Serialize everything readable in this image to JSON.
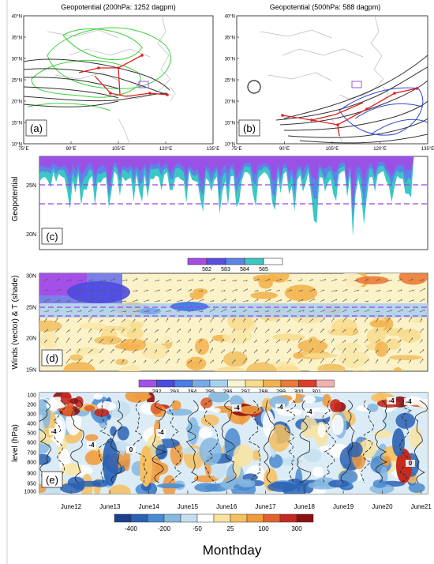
{
  "panel_a": {
    "title": "Geopotential (200hPa: 1252 dagpm)",
    "label": "(a)",
    "lat_ticks": [
      "40°N",
      "35°N",
      "30°N",
      "25°N",
      "20°N",
      "15°N",
      "10°N"
    ],
    "lon_ticks": [
      "75°E",
      "90°E",
      "105°E",
      "120°E",
      "135°E"
    ]
  },
  "panel_b": {
    "title": "Geopotential (500hPa: 588 dagpm)",
    "label": "(b)",
    "lat_ticks": [
      "40°N",
      "35°N",
      "30°N",
      "25°N",
      "20°N",
      "15°N",
      "10°N"
    ],
    "lon_ticks": [
      "75°E",
      "90°E",
      "105°E",
      "120°E",
      "135°E"
    ]
  },
  "panel_c": {
    "label": "(c)",
    "ylabel": "Geopotential",
    "lat_ticks": [
      "25N",
      "20N"
    ],
    "legend": [
      "582",
      "583",
      "584",
      "585"
    ],
    "legend_colors": [
      "#a64de6",
      "#5a4ee0",
      "#5c84e8",
      "#3cc6c6",
      "#ffffff"
    ]
  },
  "panel_d": {
    "label": "(d)",
    "ylabel": "Winds (vector) & T (shade)",
    "lat_ticks": [
      "30N",
      "25N",
      "20N",
      "15N"
    ],
    "legend": [
      "292",
      "293",
      "294",
      "295",
      "296",
      "297",
      "298",
      "299",
      "300",
      "301"
    ],
    "legend_colors": [
      "#a450e8",
      "#4d4ae0",
      "#4a7ee6",
      "#7aaae8",
      "#a8d0f0",
      "#f8f4d0",
      "#f8dc8c",
      "#f3b24c",
      "#ec7a36",
      "#dc3c2c",
      "#f2b0b0"
    ]
  },
  "panel_e": {
    "label": "(e)",
    "ylabel": "level (hPa)",
    "levels": [
      "100",
      "200",
      "300",
      "400",
      "500",
      "600",
      "700",
      "800",
      "900",
      "950",
      "1000"
    ],
    "contour_labels": [
      "-4",
      "-4",
      "-4",
      "-4",
      "-4",
      "-4",
      "-4",
      "-4",
      "0",
      "0"
    ],
    "legend": [
      "-400",
      "-200",
      "-50",
      "25",
      "100",
      "300"
    ],
    "legend_colors": [
      "#1c3f8c",
      "#2a62b4",
      "#4a8ad0",
      "#86b8e0",
      "#c4e0f0",
      "#ffffff",
      "#f8e4a0",
      "#f6c060",
      "#f09a3c",
      "#e06230",
      "#c42a20",
      "#8c1010"
    ]
  },
  "chart_data": {
    "type": "heatmap",
    "xlabel": "Monthday",
    "x_ticks": [
      "June12",
      "June13",
      "June14",
      "June15",
      "June16",
      "June17",
      "June18",
      "June19",
      "June20",
      "June21"
    ]
  }
}
